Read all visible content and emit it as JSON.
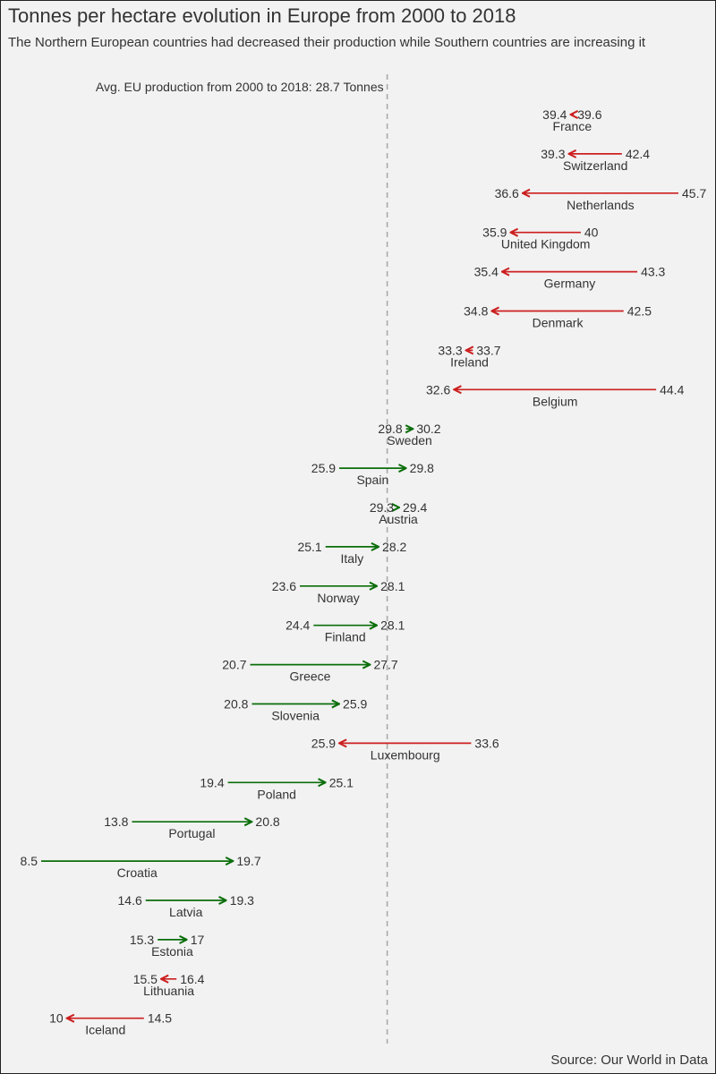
{
  "title": "Tonnes per hectare evolution in Europe from 2000 to 2018",
  "subtitle": "The Northern European countries had decreased their production while Southern countries are increasing it",
  "caption": "Source: Our World in Data",
  "colors": {
    "background": "#f2f2f2",
    "decrease": "#cc1f1f",
    "increase": "#0b6e0b",
    "reference_line": "#aaaaaa",
    "text": "#333333"
  },
  "chart_data": {
    "type": "arrow",
    "x_unit": "Tonnes per hectare",
    "xlim": [
      8.5,
      45.7
    ],
    "grid": false,
    "reference_line": {
      "value": 28.7,
      "label": "Avg. EU production from 2000 to 2018:  28.7 Tonnes"
    },
    "countries": [
      {
        "name": "France",
        "v2000": 39.6,
        "v2018": 39.4,
        "label2000": "39.6",
        "label2018": "39.4"
      },
      {
        "name": "Switzerland",
        "v2000": 42.4,
        "v2018": 39.3,
        "label2000": "42.4",
        "label2018": "39.3"
      },
      {
        "name": "Netherlands",
        "v2000": 45.7,
        "v2018": 36.6,
        "label2000": "45.7",
        "label2018": "36.6"
      },
      {
        "name": "United Kingdom",
        "v2000": 40,
        "v2018": 35.9,
        "label2000": "40",
        "label2018": "35.9"
      },
      {
        "name": "Germany",
        "v2000": 43.3,
        "v2018": 35.4,
        "label2000": "43.3",
        "label2018": "35.4"
      },
      {
        "name": "Denmark",
        "v2000": 42.5,
        "v2018": 34.8,
        "label2000": "42.5",
        "label2018": "34.8"
      },
      {
        "name": "Ireland",
        "v2000": 33.7,
        "v2018": 33.3,
        "label2000": "33.7",
        "label2018": "33.3"
      },
      {
        "name": "Belgium",
        "v2000": 44.4,
        "v2018": 32.6,
        "label2000": "44.4",
        "label2018": "32.6"
      },
      {
        "name": "Sweden",
        "v2000": 29.8,
        "v2018": 30.2,
        "label2000": "29.8",
        "label2018": "30.2"
      },
      {
        "name": "Spain",
        "v2000": 25.9,
        "v2018": 29.8,
        "label2000": "25.9",
        "label2018": "29.8"
      },
      {
        "name": "Austria",
        "v2000": 29.3,
        "v2018": 29.4,
        "label2000": "29.3",
        "label2018": "29.4"
      },
      {
        "name": "Italy",
        "v2000": 25.1,
        "v2018": 28.2,
        "label2000": "25.1",
        "label2018": "28.2"
      },
      {
        "name": "Norway",
        "v2000": 23.6,
        "v2018": 28.1,
        "label2000": "23.6",
        "label2018": "28.1"
      },
      {
        "name": "Finland",
        "v2000": 24.4,
        "v2018": 28.1,
        "label2000": "24.4",
        "label2018": "28.1"
      },
      {
        "name": "Greece",
        "v2000": 20.7,
        "v2018": 27.7,
        "label2000": "20.7",
        "label2018": "27.7"
      },
      {
        "name": "Slovenia",
        "v2000": 20.8,
        "v2018": 25.9,
        "label2000": "20.8",
        "label2018": "25.9"
      },
      {
        "name": "Luxembourg",
        "v2000": 33.6,
        "v2018": 25.9,
        "label2000": "33.6",
        "label2018": "25.9"
      },
      {
        "name": "Poland",
        "v2000": 19.4,
        "v2018": 25.1,
        "label2000": "19.4",
        "label2018": "25.1"
      },
      {
        "name": "Portugal",
        "v2000": 13.8,
        "v2018": 20.8,
        "label2000": "13.8",
        "label2018": "20.8"
      },
      {
        "name": "Croatia",
        "v2000": 8.5,
        "v2018": 19.7,
        "label2000": "8.5",
        "label2018": "19.7"
      },
      {
        "name": "Latvia",
        "v2000": 14.6,
        "v2018": 19.3,
        "label2000": "14.6",
        "label2018": "19.3"
      },
      {
        "name": "Estonia",
        "v2000": 15.3,
        "v2018": 17,
        "label2000": "15.3",
        "label2018": "17"
      },
      {
        "name": "Lithuania",
        "v2000": 16.4,
        "v2018": 15.5,
        "label2000": "16.4",
        "label2018": "15.5"
      },
      {
        "name": "Iceland",
        "v2000": 14.5,
        "v2018": 10,
        "label2000": "14.5",
        "label2018": "10"
      }
    ]
  }
}
